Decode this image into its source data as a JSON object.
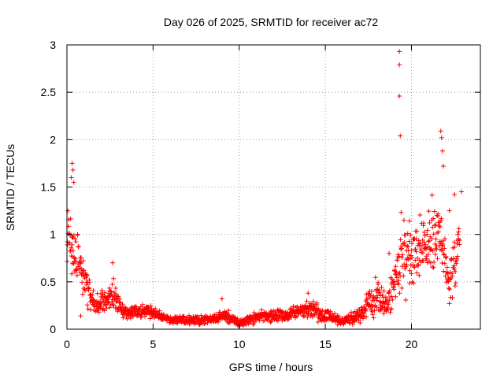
{
  "chart_data": {
    "type": "scatter",
    "title": "Day 026 of 2025, SRMTID for receiver ac72",
    "xlabel": "GPS time / hours",
    "ylabel": "SRMTID / TECUs",
    "xlim": [
      0,
      24
    ],
    "ylim": [
      0,
      3
    ],
    "xticks": [
      0,
      5,
      10,
      15,
      20
    ],
    "xtick_labels": [
      "0",
      "5",
      "10",
      "15",
      "20"
    ],
    "yticks": [
      0,
      0.5,
      1,
      1.5,
      2,
      2.5,
      3
    ],
    "ytick_labels": [
      "0",
      "0.5",
      "1",
      "1.5",
      "2",
      "2.5",
      "3"
    ],
    "grid": true,
    "marker": "plus",
    "series": [
      {
        "name": "SRMTID",
        "color": "#ff0000",
        "profile": [
          {
            "x": 0.0,
            "y": 1.0,
            "spread": 0.35
          },
          {
            "x": 0.3,
            "y": 0.9,
            "spread": 0.45
          },
          {
            "x": 0.7,
            "y": 0.65,
            "spread": 0.3
          },
          {
            "x": 1.2,
            "y": 0.45,
            "spread": 0.25
          },
          {
            "x": 1.6,
            "y": 0.25,
            "spread": 0.1
          },
          {
            "x": 2.7,
            "y": 0.35,
            "spread": 0.25
          },
          {
            "x": 3.3,
            "y": 0.2,
            "spread": 0.1
          },
          {
            "x": 5.0,
            "y": 0.18,
            "spread": 0.08
          },
          {
            "x": 6.0,
            "y": 0.1,
            "spread": 0.05
          },
          {
            "x": 8.0,
            "y": 0.1,
            "spread": 0.06
          },
          {
            "x": 9.3,
            "y": 0.14,
            "spread": 0.08
          },
          {
            "x": 10.0,
            "y": 0.06,
            "spread": 0.05
          },
          {
            "x": 11.0,
            "y": 0.13,
            "spread": 0.08
          },
          {
            "x": 13.0,
            "y": 0.16,
            "spread": 0.1
          },
          {
            "x": 14.0,
            "y": 0.22,
            "spread": 0.12
          },
          {
            "x": 15.0,
            "y": 0.15,
            "spread": 0.1
          },
          {
            "x": 16.0,
            "y": 0.08,
            "spread": 0.06
          },
          {
            "x": 17.0,
            "y": 0.15,
            "spread": 0.1
          },
          {
            "x": 18.0,
            "y": 0.35,
            "spread": 0.25
          },
          {
            "x": 18.6,
            "y": 0.25,
            "spread": 0.2
          },
          {
            "x": 19.4,
            "y": 0.8,
            "spread": 0.6
          },
          {
            "x": 20.3,
            "y": 0.8,
            "spread": 0.45
          },
          {
            "x": 21.0,
            "y": 1.0,
            "spread": 0.5
          },
          {
            "x": 21.6,
            "y": 1.0,
            "spread": 0.5
          },
          {
            "x": 22.2,
            "y": 0.5,
            "spread": 0.3
          },
          {
            "x": 22.8,
            "y": 0.9,
            "spread": 0.4
          }
        ],
        "highlights": [
          {
            "x": 19.3,
            "y": 2.93
          },
          {
            "x": 19.3,
            "y": 2.79
          },
          {
            "x": 19.3,
            "y": 2.46
          },
          {
            "x": 19.35,
            "y": 2.04
          },
          {
            "x": 21.7,
            "y": 2.09
          },
          {
            "x": 21.75,
            "y": 2.02
          },
          {
            "x": 21.8,
            "y": 1.88
          },
          {
            "x": 21.85,
            "y": 1.72
          },
          {
            "x": 0.3,
            "y": 1.75
          },
          {
            "x": 0.35,
            "y": 1.68
          },
          {
            "x": 0.25,
            "y": 1.6
          },
          {
            "x": 0.4,
            "y": 1.55
          },
          {
            "x": 22.9,
            "y": 1.45
          },
          {
            "x": 22.5,
            "y": 1.42
          },
          {
            "x": 22.2,
            "y": 1.25
          },
          {
            "x": 2.65,
            "y": 0.7
          },
          {
            "x": 18.7,
            "y": 0.8
          },
          {
            "x": 0.8,
            "y": 0.14
          },
          {
            "x": 14.0,
            "y": 0.38
          },
          {
            "x": 9.0,
            "y": 0.32
          }
        ]
      }
    ]
  }
}
